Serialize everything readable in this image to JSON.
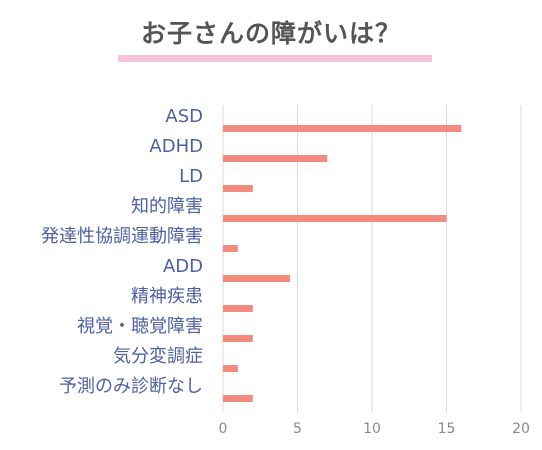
{
  "chart_data": {
    "type": "bar",
    "orientation": "horizontal",
    "title": "お子さんの障がいは？",
    "categories": [
      "ASD",
      "ADHD",
      "LD",
      "知的障害",
      "発達性協調運動障害",
      "ADD",
      "精神疾患",
      "視覚・聴覚障害",
      "気分変調症",
      "予測のみ診断なし"
    ],
    "values": [
      16,
      7,
      2,
      15,
      1,
      4.5,
      2,
      2,
      1,
      2
    ],
    "xlim": [
      0,
      20
    ],
    "xticks": [
      "0",
      "5",
      "10",
      "15",
      "20"
    ],
    "grid": true,
    "colors": {
      "bar": "#f28b7e",
      "label": "#4f5fa5",
      "tick": "#8a8a8a",
      "grid": "#d9d9d9",
      "accent": "#f6c5dc"
    }
  }
}
